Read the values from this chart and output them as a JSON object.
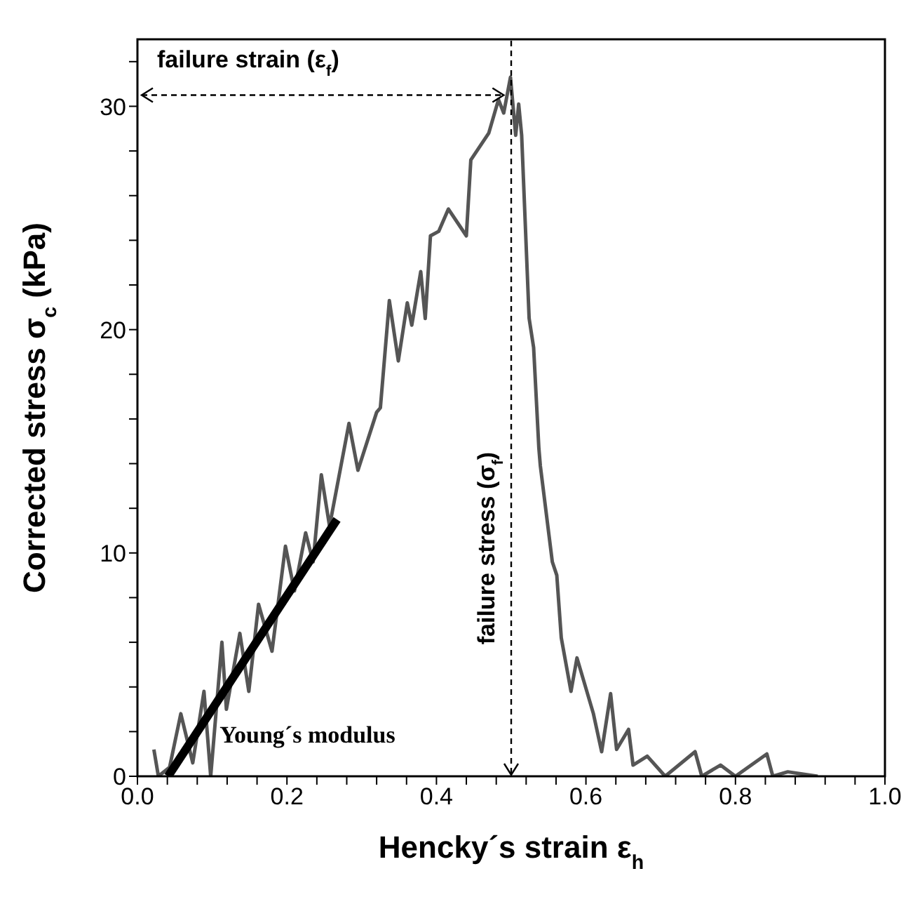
{
  "chart_data": {
    "type": "line",
    "xlabel": "Hencky´s strain ε$_{h}$",
    "ylabel": "Corrected stress σ$_{c}$ (kPa)",
    "xlim": [
      0,
      1
    ],
    "xticks": [
      {
        "value": 0,
        "label": "0.0"
      },
      {
        "value": 0.04,
        "label": null
      },
      {
        "value": 0.08,
        "label": null
      },
      {
        "value": 0.12,
        "label": null
      },
      {
        "value": 0.16,
        "label": null
      },
      {
        "value": 0.2,
        "label": "0.2"
      },
      {
        "value": 0.24,
        "label": null
      },
      {
        "value": 0.28,
        "label": null
      },
      {
        "value": 0.32,
        "label": null
      },
      {
        "value": 0.36,
        "label": null
      },
      {
        "value": 0.4,
        "label": "0.4"
      },
      {
        "value": 0.44,
        "label": null
      },
      {
        "value": 0.48,
        "label": null
      },
      {
        "value": 0.52,
        "label": null
      },
      {
        "value": 0.56,
        "label": null
      },
      {
        "value": 0.6,
        "label": "0.6"
      },
      {
        "value": 0.64,
        "label": null
      },
      {
        "value": 0.68,
        "label": null
      },
      {
        "value": 0.72,
        "label": null
      },
      {
        "value": 0.76,
        "label": null
      },
      {
        "value": 0.8,
        "label": "0.8"
      },
      {
        "value": 0.84,
        "label": null
      },
      {
        "value": 0.88,
        "label": null
      },
      {
        "value": 0.92,
        "label": null
      },
      {
        "value": 0.96,
        "label": null
      },
      {
        "value": 1,
        "label": "1.0"
      }
    ],
    "ylim": [
      0,
      33
    ],
    "yticks": [
      0,
      {
        "value": 2,
        "label": null
      },
      {
        "value": 4,
        "label": null
      },
      {
        "value": 6,
        "label": null
      },
      {
        "value": 8,
        "label": null
      },
      10,
      {
        "value": 12,
        "label": null
      },
      {
        "value": 14,
        "label": null
      },
      {
        "value": 16,
        "label": null
      },
      {
        "value": 18,
        "label": null
      },
      20,
      {
        "value": 22,
        "label": null
      },
      {
        "value": 24,
        "label": null
      },
      {
        "value": 26,
        "label": null
      },
      {
        "value": 28,
        "label": null
      },
      30,
      {
        "value": 32,
        "label": null
      }
    ],
    "marker": "none",
    "line_style": "solid",
    "ref_lines": [
      {
        "axis": "x",
        "value": 0.5,
        "label": "failure stress (σ$_{f}$)",
        "line_style": "dashed",
        "color": "#000000"
      }
    ],
    "series": [
      {
        "color": "#555555",
        "x": [
          0.022,
          0.028,
          0.043,
          0.058,
          0.074,
          0.089,
          0.098,
          0.113,
          0.119,
          0.137,
          0.149,
          0.162,
          0.18,
          0.198,
          0.21,
          0.225,
          0.235,
          0.246,
          0.257,
          0.283,
          0.295,
          0.32,
          0.325,
          0.337,
          0.349,
          0.361,
          0.367,
          0.379,
          0.385,
          0.392,
          0.403,
          0.416,
          0.44,
          0.446,
          0.47,
          0.483,
          0.49,
          0.499,
          0.506,
          0.51,
          0.514,
          0.524,
          0.53,
          0.537,
          0.539,
          0.555,
          0.561,
          0.567,
          0.58,
          0.588,
          0.61,
          0.621,
          0.633,
          0.641,
          0.657,
          0.663,
          0.682,
          0.706,
          0.746,
          0.755,
          0.78,
          0.8,
          0.842,
          0.85,
          0.87,
          0.91
        ],
        "values": [
          1.2,
          0,
          0.4,
          2.8,
          0.6,
          3.8,
          0,
          6,
          3,
          6.4,
          3.8,
          7.7,
          5.6,
          10.3,
          8.3,
          10.9,
          9.6,
          13.5,
          11.2,
          15.8,
          13.7,
          16.3,
          16.5,
          21.3,
          18.6,
          21.2,
          20.2,
          22.6,
          20.5,
          24.2,
          24.4,
          25.4,
          24.2,
          27.6,
          28.8,
          30.3,
          29.7,
          31.3,
          28.7,
          30.1,
          28.7,
          20.5,
          19.2,
          14.7,
          13.9,
          9.6,
          9,
          6.2,
          3.8,
          5.3,
          2.8,
          1.1,
          3.7,
          1.2,
          2.1,
          0.5,
          0.9,
          0,
          1.1,
          0,
          0.5,
          0,
          1,
          0,
          0.2,
          0
        ]
      },
      {
        "type": "line",
        "color": "#000000",
        "x": [
          0.041,
          0.267
        ],
        "values": [
          0,
          11.5
        ]
      }
    ],
    "annotations": [
      {
        "text": "failure strain (ε$_{f}$)",
        "x": 0.49,
        "y": 30.5
      },
      {
        "text": "Young´s modulus",
        "x": 0.11,
        "y": 1.5
      }
    ]
  }
}
